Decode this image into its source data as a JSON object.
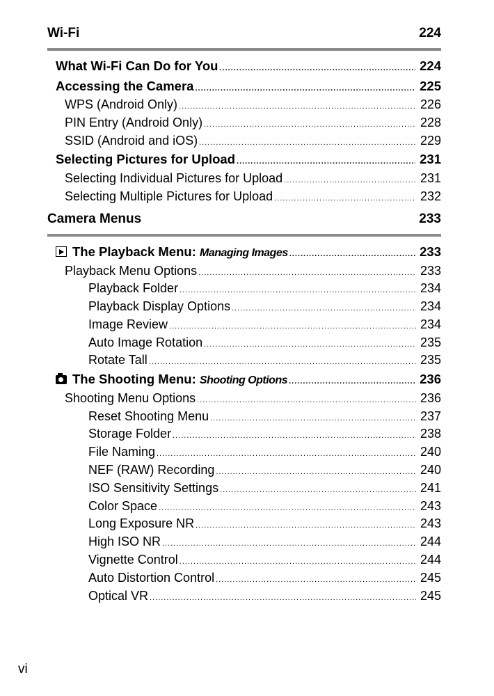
{
  "sections": [
    {
      "title": "Wi-Fi",
      "page": "224",
      "entries": [
        {
          "level": 1,
          "text": "What Wi-Fi Can Do for You",
          "page": "224"
        },
        {
          "level": 1,
          "text": "Accessing the Camera",
          "page": "225"
        },
        {
          "level": 2,
          "text": "WPS (Android Only)",
          "page": "226"
        },
        {
          "level": 2,
          "text": "PIN Entry (Android Only)",
          "page": "228"
        },
        {
          "level": 2,
          "text": "SSID (Android and iOS)",
          "page": "229"
        },
        {
          "level": 1,
          "text": "Selecting Pictures for Upload",
          "page": "231"
        },
        {
          "level": 2,
          "text": "Selecting Individual Pictures for Upload",
          "page": "231"
        },
        {
          "level": 2,
          "text": "Selecting Multiple Pictures for Upload",
          "page": "232"
        }
      ]
    },
    {
      "title": "Camera Menus",
      "page": "233",
      "entries": [
        {
          "level": 1,
          "icon": "playback-icon",
          "text": "The Playback Menu: ",
          "italic": "Managing Images",
          "page": "233"
        },
        {
          "level": 2,
          "text": "Playback Menu Options",
          "page": "233"
        },
        {
          "level": 3,
          "text": "Playback Folder",
          "page": "234"
        },
        {
          "level": 3,
          "text": "Playback Display Options",
          "page": "234"
        },
        {
          "level": 3,
          "text": "Image Review",
          "page": "234"
        },
        {
          "level": 3,
          "text": "Auto Image Rotation",
          "page": "235"
        },
        {
          "level": 3,
          "text": "Rotate Tall",
          "page": "235"
        },
        {
          "level": 1,
          "icon": "camera-icon",
          "text": "The Shooting Menu: ",
          "italic": "Shooting Options",
          "page": "236"
        },
        {
          "level": 2,
          "text": "Shooting Menu Options",
          "page": "236"
        },
        {
          "level": 3,
          "text": "Reset Shooting Menu",
          "page": "237"
        },
        {
          "level": 3,
          "text": "Storage Folder",
          "page": "238"
        },
        {
          "level": 3,
          "text": "File Naming",
          "page": "240"
        },
        {
          "level": 3,
          "text": "NEF (RAW) Recording",
          "page": "240"
        },
        {
          "level": 3,
          "text": "ISO Sensitivity Settings",
          "page": "241"
        },
        {
          "level": 3,
          "text": "Color Space",
          "page": "243"
        },
        {
          "level": 3,
          "text": "Long Exposure NR",
          "page": "243"
        },
        {
          "level": 3,
          "text": "High ISO NR",
          "page": "244"
        },
        {
          "level": 3,
          "text": "Vignette Control",
          "page": "244"
        },
        {
          "level": 3,
          "text": "Auto Distortion Control",
          "page": "245"
        },
        {
          "level": 3,
          "text": "Optical VR",
          "page": "245"
        }
      ]
    }
  ],
  "folio": "vi"
}
